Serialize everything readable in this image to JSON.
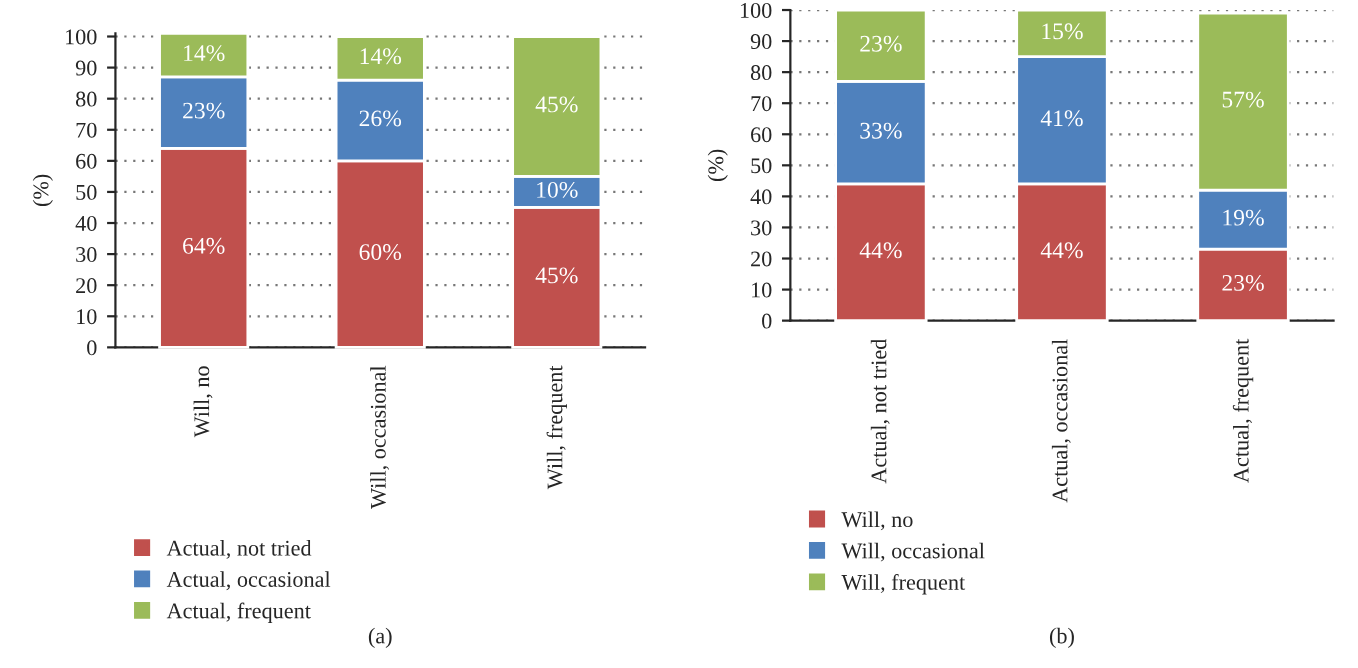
{
  "chart_data": [
    {
      "type": "bar",
      "stacked": true,
      "categories": [
        "Will, no",
        "Will, occasional",
        "Will, frequent"
      ],
      "ylabel": "(%)",
      "ylim": [
        0,
        101
      ],
      "yticks": [
        0,
        10,
        20,
        30,
        40,
        50,
        60,
        70,
        80,
        90,
        100
      ],
      "grid": "y",
      "legend": "bottom",
      "annotations": [
        "(a)"
      ],
      "series": [
        {
          "name": "Actual, not tried",
          "color": "#c0504d",
          "values": [
            64,
            60,
            45
          ],
          "value_labels": [
            "64%",
            "60%",
            "45%"
          ]
        },
        {
          "name": "Actual, occasional",
          "color": "#4f81bd",
          "values": [
            23,
            26,
            10
          ],
          "value_labels": [
            "23%",
            "26%",
            "10%"
          ]
        },
        {
          "name": "Actual, frequent",
          "color": "#9bbb59",
          "values": [
            14,
            14,
            45
          ],
          "value_labels": [
            "14%",
            "14%",
            "45%"
          ]
        }
      ]
    },
    {
      "type": "bar",
      "stacked": true,
      "categories": [
        "Actual, not tried",
        "Actual, occasional",
        "Actual, frequent"
      ],
      "ylabel": "(%)",
      "ylim": [
        0,
        100
      ],
      "yticks": [
        0,
        10,
        20,
        30,
        40,
        50,
        60,
        70,
        80,
        90,
        100
      ],
      "grid": "y",
      "legend": "bottom",
      "annotations": [
        "(b)"
      ],
      "series": [
        {
          "name": "Will, no",
          "color": "#c0504d",
          "values": [
            44,
            44,
            23
          ],
          "value_labels": [
            "44%",
            "44%",
            "23%"
          ]
        },
        {
          "name": "Will, occasional",
          "color": "#4f81bd",
          "values": [
            33,
            41,
            19
          ],
          "value_labels": [
            "33%",
            "41%",
            "19%"
          ]
        },
        {
          "name": "Will, frequent",
          "color": "#9bbb59",
          "values": [
            23,
            15,
            57
          ],
          "value_labels": [
            "23%",
            "15%",
            "57%"
          ]
        }
      ]
    }
  ]
}
